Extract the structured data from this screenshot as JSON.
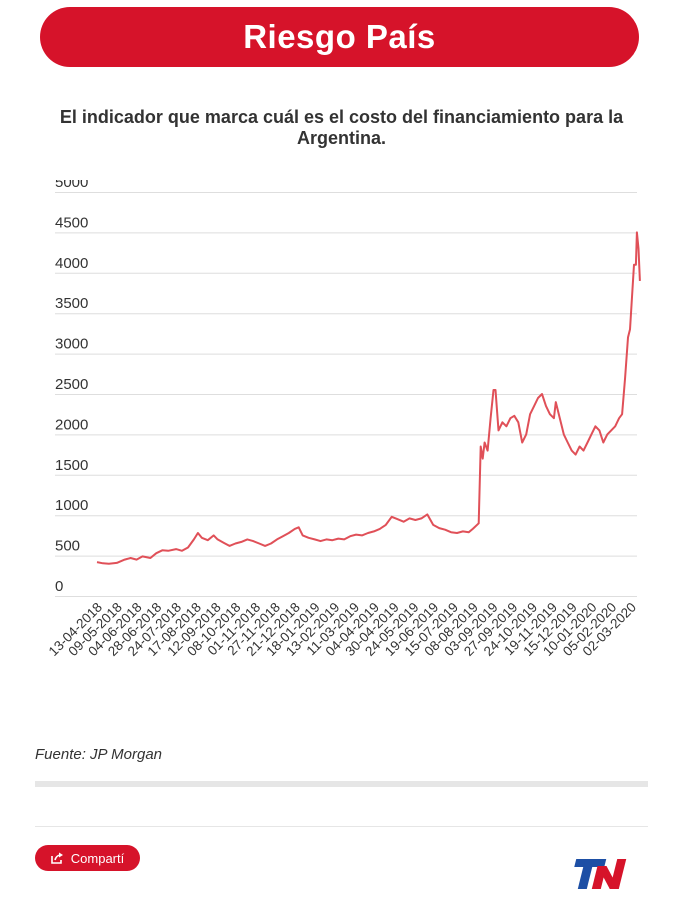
{
  "header": {
    "title": "Riesgo País"
  },
  "subtitle": "El indicador que marca cuál es el costo del financiamiento para la Argentina.",
  "source": "Fuente: JP Morgan",
  "share": {
    "label": "Compartí",
    "icon": "share-icon"
  },
  "logo": {
    "text": "TN",
    "icon": "tn-logo-icon"
  },
  "colors": {
    "accent": "#d6132a",
    "line": "#e05058",
    "logo_blue": "#1d4fa5"
  },
  "chart_data": {
    "type": "line",
    "title": "Riesgo País",
    "xlabel": "",
    "ylabel": "",
    "ylim": [
      0,
      5000
    ],
    "yticks": [
      "0",
      "500",
      "1000",
      "1500",
      "2000",
      "2500",
      "3000",
      "3500",
      "4000",
      "4500",
      "5000"
    ],
    "xtick_labels": [
      "13-04-2018",
      "09-05-2018",
      "04-06-2018",
      "28-06-2018",
      "24-07-2018",
      "17-08-2018",
      "12-09-2018",
      "08-10-2018",
      "01-11-2018",
      "27-11-2018",
      "21-12-2018",
      "18-01-2019",
      "13-02-2019",
      "11-03-2019",
      "04-04-2019",
      "30-04-2019",
      "24-05-2019",
      "19-06-2019",
      "15-07-2019",
      "08-08-2019",
      "03-09-2019",
      "27-09-2019",
      "24-10-2019",
      "19-11-2019",
      "15-12-2019",
      "10-01-2020",
      "05-02-2020",
      "02-03-2020"
    ],
    "grid": true,
    "series": [
      {
        "name": "Riesgo País",
        "points": [
          [
            0,
            420
          ],
          [
            0.3,
            405
          ],
          [
            0.6,
            400
          ],
          [
            1,
            410
          ],
          [
            1.4,
            450
          ],
          [
            1.7,
            470
          ],
          [
            2,
            450
          ],
          [
            2.3,
            490
          ],
          [
            2.7,
            470
          ],
          [
            3,
            530
          ],
          [
            3.3,
            565
          ],
          [
            3.6,
            560
          ],
          [
            4,
            580
          ],
          [
            4.3,
            560
          ],
          [
            4.6,
            600
          ],
          [
            4.9,
            700
          ],
          [
            5.1,
            780
          ],
          [
            5.3,
            720
          ],
          [
            5.6,
            690
          ],
          [
            5.9,
            750
          ],
          [
            6.1,
            700
          ],
          [
            6.4,
            660
          ],
          [
            6.7,
            620
          ],
          [
            7,
            650
          ],
          [
            7.3,
            670
          ],
          [
            7.6,
            700
          ],
          [
            7.9,
            680
          ],
          [
            8.2,
            650
          ],
          [
            8.5,
            620
          ],
          [
            8.8,
            650
          ],
          [
            9.1,
            700
          ],
          [
            9.4,
            740
          ],
          [
            9.7,
            780
          ],
          [
            10,
            830
          ],
          [
            10.2,
            850
          ],
          [
            10.4,
            750
          ],
          [
            10.7,
            720
          ],
          [
            11,
            700
          ],
          [
            11.3,
            680
          ],
          [
            11.6,
            700
          ],
          [
            11.9,
            690
          ],
          [
            12.2,
            710
          ],
          [
            12.5,
            700
          ],
          [
            12.8,
            740
          ],
          [
            13.1,
            760
          ],
          [
            13.4,
            750
          ],
          [
            13.7,
            780
          ],
          [
            14,
            800
          ],
          [
            14.3,
            830
          ],
          [
            14.6,
            880
          ],
          [
            14.9,
            980
          ],
          [
            15.2,
            950
          ],
          [
            15.5,
            920
          ],
          [
            15.8,
            960
          ],
          [
            16.1,
            940
          ],
          [
            16.4,
            960
          ],
          [
            16.7,
            1010
          ],
          [
            17,
            880
          ],
          [
            17.3,
            840
          ],
          [
            17.6,
            820
          ],
          [
            17.9,
            790
          ],
          [
            18.2,
            780
          ],
          [
            18.5,
            800
          ],
          [
            18.8,
            790
          ],
          [
            19,
            830
          ],
          [
            19.3,
            900
          ],
          [
            19.4,
            1850
          ],
          [
            19.5,
            1700
          ],
          [
            19.6,
            1900
          ],
          [
            19.75,
            1800
          ],
          [
            19.9,
            2200
          ],
          [
            20.05,
            2550
          ],
          [
            20.15,
            2550
          ],
          [
            20.3,
            2050
          ],
          [
            20.5,
            2150
          ],
          [
            20.7,
            2100
          ],
          [
            20.9,
            2200
          ],
          [
            21.1,
            2230
          ],
          [
            21.3,
            2150
          ],
          [
            21.5,
            1900
          ],
          [
            21.7,
            2000
          ],
          [
            21.9,
            2250
          ],
          [
            22.1,
            2350
          ],
          [
            22.3,
            2450
          ],
          [
            22.5,
            2500
          ],
          [
            22.7,
            2350
          ],
          [
            22.9,
            2250
          ],
          [
            23.1,
            2200
          ],
          [
            23.2,
            2400
          ],
          [
            23.4,
            2200
          ],
          [
            23.6,
            2000
          ],
          [
            23.8,
            1900
          ],
          [
            24.0,
            1800
          ],
          [
            24.2,
            1750
          ],
          [
            24.4,
            1850
          ],
          [
            24.6,
            1800
          ],
          [
            24.8,
            1900
          ],
          [
            25.0,
            2000
          ],
          [
            25.2,
            2100
          ],
          [
            25.4,
            2050
          ],
          [
            25.6,
            1900
          ],
          [
            25.8,
            2000
          ],
          [
            26.0,
            2050
          ],
          [
            26.2,
            2100
          ],
          [
            26.4,
            2200
          ],
          [
            26.55,
            2250
          ],
          [
            26.7,
            2700
          ],
          [
            26.85,
            3200
          ],
          [
            26.95,
            3300
          ],
          [
            27.05,
            3700
          ],
          [
            27.15,
            4100
          ],
          [
            27.25,
            4100
          ],
          [
            27.3,
            4500
          ],
          [
            27.38,
            4300
          ],
          [
            27.45,
            3900
          ]
        ]
      }
    ]
  }
}
